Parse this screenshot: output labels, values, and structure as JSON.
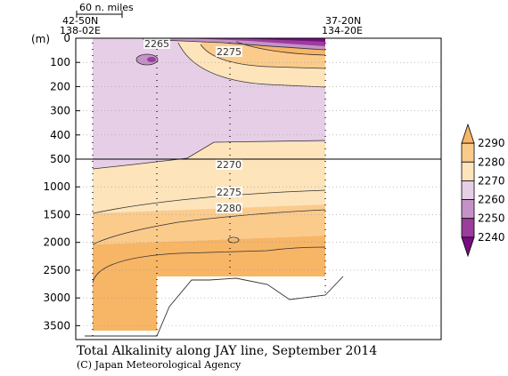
{
  "chart_data": {
    "type": "contour",
    "title": "Total Alkalinity along JAY line, September 2014",
    "credit": "(C) Japan Meteorological Agency",
    "y_unit": "(m)",
    "scale_bar": "60 n. miles",
    "stations_left": {
      "lat": "42-50N",
      "lon": "138-02E"
    },
    "stations_right": {
      "lat": "37-20N",
      "lon": "134-20E"
    },
    "y_ticks_upper": [
      "0",
      "100",
      "200",
      "300",
      "400",
      "500"
    ],
    "y_ticks_lower": [
      "1000",
      "1500",
      "2000",
      "2500",
      "3000",
      "3500"
    ],
    "y_ticks_values_upper": [
      0,
      100,
      200,
      300,
      400,
      500
    ],
    "y_ticks_values_lower": [
      1000,
      1500,
      2000,
      2500,
      3000,
      3500
    ],
    "ylim": [
      3750,
      0
    ],
    "colorbar": {
      "levels": [
        "2290",
        "2280",
        "2270",
        "2260",
        "2250",
        "2240"
      ],
      "colors": [
        "#f7b566",
        "#fbcb8c",
        "#fde4bb",
        "#e6cfe6",
        "#c592c7",
        "#9a3d9c",
        "#770d82"
      ]
    },
    "contour_labels": [
      "2265",
      "2275",
      "2270",
      "2275",
      "2280"
    ],
    "station_count": 4
  }
}
